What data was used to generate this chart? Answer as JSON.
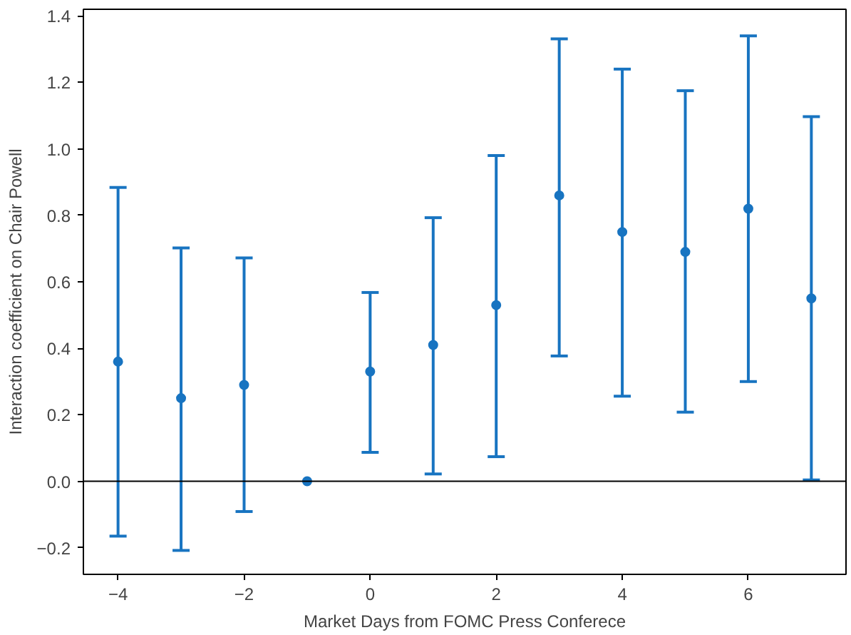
{
  "chart_data": {
    "type": "scatter",
    "xlabel": "Market Days from FOMC Press Conferece",
    "ylabel": "Interaction coefficient on Chair Powell",
    "x": [
      -4,
      -3,
      -2,
      -1,
      0,
      1,
      2,
      3,
      4,
      5,
      6,
      7
    ],
    "values": [
      0.36,
      0.25,
      0.29,
      0.0,
      0.33,
      0.41,
      0.53,
      0.86,
      0.75,
      0.69,
      0.82,
      0.55
    ],
    "errors": [
      [
        -0.165,
        0.884
      ],
      [
        -0.208,
        0.702
      ],
      [
        -0.091,
        0.672
      ],
      null,
      [
        0.087,
        0.568
      ],
      [
        0.022,
        0.793
      ],
      [
        0.074,
        0.98
      ],
      [
        0.377,
        1.331
      ],
      [
        0.256,
        1.24
      ],
      [
        0.208,
        1.175
      ],
      [
        0.3,
        1.34
      ],
      [
        0.004,
        1.097
      ]
    ],
    "color": "#1874c1",
    "marker": "circle",
    "grid": false,
    "xlim": [
      -4.55,
      7.55
    ],
    "ylim": [
      -0.28,
      1.42
    ],
    "xticks": [
      {
        "value": -4,
        "label": "−4"
      },
      {
        "value": -2,
        "label": "−2"
      },
      {
        "value": 0,
        "label": "0"
      },
      {
        "value": 2,
        "label": "2"
      },
      {
        "value": 4,
        "label": "4"
      },
      {
        "value": 6,
        "label": "6"
      }
    ],
    "yticks": [
      {
        "value": -0.2,
        "label": "−0.2"
      },
      {
        "value": 0,
        "label": "0.0"
      },
      {
        "value": 0.2,
        "label": "0.2"
      },
      {
        "value": 0.4,
        "label": "0.4"
      },
      {
        "value": 0.6,
        "label": "0.6"
      },
      {
        "value": 0.8,
        "label": "0.8"
      },
      {
        "value": 1.0,
        "label": "1.0"
      },
      {
        "value": 1.2,
        "label": "1.2"
      },
      {
        "value": 1.4,
        "label": "1.4"
      }
    ],
    "ref_lines": [
      {
        "axis": "y",
        "value": 0,
        "color": "#000000"
      }
    ]
  }
}
